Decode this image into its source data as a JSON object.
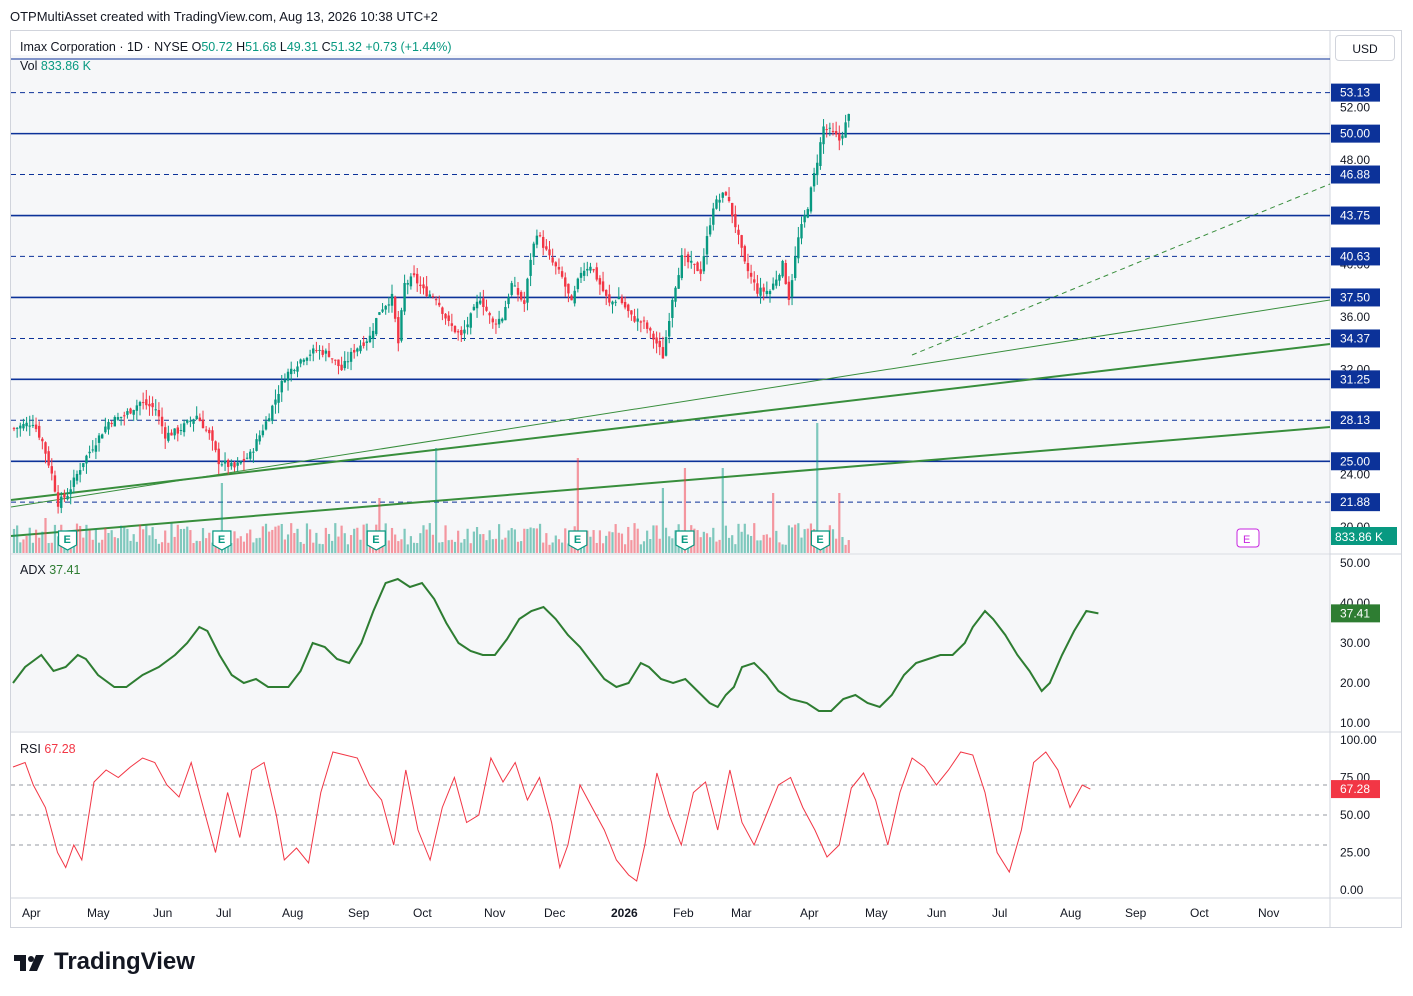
{
  "credit": "OTPMultiAsset created with TradingView.com, Aug 13, 2026 10:38 UTC+2",
  "currency": "USD",
  "brand": "TradingView",
  "legend": {
    "symbol": "Imax Corporation · 1D · NYSE",
    "open_label": "O",
    "open": "50.72",
    "high_label": "H",
    "high": "51.68",
    "low_label": "L",
    "low": "49.31",
    "close_label": "C",
    "close": "51.32",
    "change": "+0.73 (+1.44%)",
    "vol_label": "Vol",
    "vol": "833.86 K",
    "adx_label": "ADX",
    "adx": "37.41",
    "rsi_label": "RSI",
    "rsi": "67.28"
  },
  "colors": {
    "up": "#089981",
    "down": "#f23645",
    "navy": "#0c3299",
    "trend": "#388e3c",
    "rsi": "#f23645",
    "adx": "#2e7d32"
  },
  "chart_data": [
    {
      "type": "candlestick",
      "title": "Imax Corporation · 1D · NYSE",
      "ylim": [
        18,
        56
      ],
      "y_ticks": [
        20.0,
        24.0,
        32.0,
        36.0,
        40.0,
        48.0,
        52.0
      ],
      "x_labels": [
        "Apr",
        "May",
        "Jun",
        "Jul",
        "Aug",
        "Sep",
        "Oct",
        "Nov",
        "Dec",
        "2026",
        "Feb",
        "Mar",
        "Apr",
        "May",
        "Jun",
        "Jul",
        "Aug",
        "Sep",
        "Oct",
        "Nov"
      ],
      "close_path": [
        [
          0,
          27.5
        ],
        [
          6,
          28.0
        ],
        [
          9,
          26.5
        ],
        [
          12,
          24.0
        ],
        [
          14,
          21.8
        ],
        [
          17,
          22.5
        ],
        [
          22,
          25.0
        ],
        [
          26,
          26.5
        ],
        [
          30,
          28.0
        ],
        [
          35,
          28.5
        ],
        [
          40,
          29.5
        ],
        [
          45,
          29.0
        ],
        [
          48,
          27.0
        ],
        [
          52,
          27.3
        ],
        [
          58,
          28.5
        ],
        [
          62,
          27.0
        ],
        [
          65,
          25.0
        ],
        [
          70,
          24.5
        ],
        [
          75,
          25.5
        ],
        [
          80,
          28.0
        ],
        [
          86,
          31.5
        ],
        [
          92,
          33.0
        ],
        [
          96,
          33.5
        ],
        [
          100,
          33.2
        ],
        [
          104,
          32.0
        ],
        [
          108,
          33.5
        ],
        [
          113,
          34.5
        ],
        [
          116,
          36.5
        ],
        [
          118,
          37.0
        ],
        [
          120,
          37.5
        ],
        [
          122,
          34.0
        ],
        [
          124,
          38.5
        ],
        [
          127,
          39.0
        ],
        [
          130,
          38.0
        ],
        [
          134,
          37.5
        ],
        [
          138,
          35.5
        ],
        [
          142,
          34.5
        ],
        [
          145,
          36.0
        ],
        [
          148,
          37.5
        ],
        [
          152,
          35.5
        ],
        [
          155,
          36.0
        ],
        [
          158,
          38.5
        ],
        [
          162,
          37.0
        ],
        [
          164,
          40.5
        ],
        [
          166,
          42.5
        ],
        [
          170,
          40.5
        ],
        [
          174,
          39.0
        ],
        [
          177,
          37.0
        ],
        [
          180,
          39.5
        ],
        [
          183,
          40.0
        ],
        [
          186,
          38.5
        ],
        [
          189,
          37.0
        ],
        [
          192,
          37.5
        ],
        [
          196,
          36.0
        ],
        [
          200,
          35.5
        ],
        [
          204,
          34.0
        ],
        [
          206,
          33.0
        ],
        [
          209,
          37.5
        ],
        [
          212,
          40.5
        ],
        [
          215,
          40.0
        ],
        [
          218,
          39.5
        ],
        [
          222,
          44.5
        ],
        [
          226,
          45.5
        ],
        [
          229,
          43.0
        ],
        [
          232,
          40.0
        ],
        [
          236,
          38.0
        ],
        [
          240,
          38.0
        ],
        [
          244,
          40.0
        ],
        [
          246,
          37.5
        ],
        [
          249,
          42.0
        ],
        [
          252,
          44.5
        ],
        [
          255,
          48.0
        ],
        [
          257,
          50.5
        ],
        [
          260,
          50.0
        ],
        [
          262,
          49.5
        ],
        [
          265,
          51.32
        ]
      ],
      "horizontal_levels": [
        {
          "value": 53.13,
          "style": "dashed"
        },
        {
          "value": 50.0,
          "style": "solid"
        },
        {
          "value": 46.88,
          "style": "dashed"
        },
        {
          "value": 43.75,
          "style": "solid"
        },
        {
          "value": 40.63,
          "style": "dashed"
        },
        {
          "value": 37.5,
          "style": "solid"
        },
        {
          "value": 34.37,
          "style": "dashed"
        },
        {
          "value": 31.25,
          "style": "solid"
        },
        {
          "value": 28.13,
          "style": "dashed"
        },
        {
          "value": 25.0,
          "style": "solid"
        },
        {
          "value": 21.88,
          "style": "dashed"
        }
      ],
      "earnings_markers": [
        17,
        66,
        115,
        179,
        213,
        256
      ]
    },
    {
      "type": "bar",
      "title": "Vol",
      "last_value": "833.86 K",
      "spikes": [
        {
          "x": 10,
          "h": 0.35
        },
        {
          "x": 66,
          "h": 0.7
        },
        {
          "x": 116,
          "h": 0.55
        },
        {
          "x": 134,
          "h": 1.05
        },
        {
          "x": 179,
          "h": 0.95
        },
        {
          "x": 206,
          "h": 0.65
        },
        {
          "x": 213,
          "h": 0.85
        },
        {
          "x": 225,
          "h": 0.85
        },
        {
          "x": 241,
          "h": 0.6
        },
        {
          "x": 255,
          "h": 1.3
        },
        {
          "x": 262,
          "h": 0.6
        }
      ]
    },
    {
      "type": "line",
      "title": "ADX",
      "last_value": 37.41,
      "ylim": [
        8,
        52
      ],
      "y_ticks": [
        10.0,
        20.0,
        30.0,
        40.0,
        50.0
      ],
      "values": [
        [
          0,
          20
        ],
        [
          3,
          24
        ],
        [
          7,
          27
        ],
        [
          10,
          23
        ],
        [
          13,
          24
        ],
        [
          16,
          27
        ],
        [
          18,
          26
        ],
        [
          21,
          22
        ],
        [
          25,
          19
        ],
        [
          28,
          19
        ],
        [
          32,
          22
        ],
        [
          36,
          24
        ],
        [
          40,
          27
        ],
        [
          43,
          30
        ],
        [
          46,
          34
        ],
        [
          48,
          33
        ],
        [
          51,
          27
        ],
        [
          54,
          22
        ],
        [
          57,
          20
        ],
        [
          60,
          21
        ],
        [
          63,
          19
        ],
        [
          66,
          19
        ],
        [
          68,
          19
        ],
        [
          71,
          23
        ],
        [
          74,
          30
        ],
        [
          77,
          29
        ],
        [
          80,
          26
        ],
        [
          83,
          25
        ],
        [
          86,
          30
        ],
        [
          89,
          38
        ],
        [
          92,
          45
        ],
        [
          95,
          46
        ],
        [
          98,
          44
        ],
        [
          101,
          45
        ],
        [
          104,
          41
        ],
        [
          107,
          35
        ],
        [
          110,
          30
        ],
        [
          113,
          28
        ],
        [
          116,
          27
        ],
        [
          119,
          27
        ],
        [
          122,
          31
        ],
        [
          125,
          36
        ],
        [
          128,
          38
        ],
        [
          131,
          39
        ],
        [
          134,
          36
        ],
        [
          137,
          32
        ],
        [
          140,
          29
        ],
        [
          143,
          25
        ],
        [
          146,
          21
        ],
        [
          149,
          19
        ],
        [
          152,
          20
        ],
        [
          155,
          25
        ],
        [
          157,
          24
        ],
        [
          160,
          21
        ],
        [
          163,
          20
        ],
        [
          166,
          21
        ],
        [
          168,
          19
        ],
        [
          172,
          15
        ],
        [
          174,
          14
        ],
        [
          176,
          17
        ],
        [
          178,
          19
        ],
        [
          180,
          24
        ],
        [
          183,
          25
        ],
        [
          186,
          22
        ],
        [
          189,
          18
        ],
        [
          192,
          16
        ],
        [
          196,
          15
        ],
        [
          199,
          13
        ],
        [
          202,
          13
        ],
        [
          205,
          16
        ],
        [
          208,
          17
        ],
        [
          211,
          15
        ],
        [
          214,
          14
        ],
        [
          217,
          17
        ],
        [
          220,
          22
        ],
        [
          223,
          25
        ],
        [
          226,
          26
        ],
        [
          229,
          27
        ],
        [
          232,
          27
        ],
        [
          235,
          30
        ],
        [
          237,
          34
        ],
        [
          240,
          38
        ],
        [
          242,
          36
        ],
        [
          245,
          32
        ],
        [
          248,
          27
        ],
        [
          251,
          23
        ],
        [
          254,
          18
        ],
        [
          256,
          20
        ],
        [
          259,
          27
        ],
        [
          262,
          33
        ],
        [
          265,
          38
        ],
        [
          268,
          37.41
        ]
      ]
    },
    {
      "type": "line",
      "title": "RSI",
      "last_value": 67.28,
      "ylim": [
        0,
        100
      ],
      "y_ticks": [
        0.0,
        25.0,
        50.0,
        75.0,
        100.0
      ],
      "bands": [
        30,
        50,
        70
      ],
      "values": [
        [
          0,
          82
        ],
        [
          3,
          85
        ],
        [
          5,
          70
        ],
        [
          8,
          55
        ],
        [
          11,
          25
        ],
        [
          13,
          15
        ],
        [
          15,
          30
        ],
        [
          17,
          20
        ],
        [
          20,
          72
        ],
        [
          23,
          80
        ],
        [
          26,
          75
        ],
        [
          29,
          82
        ],
        [
          32,
          88
        ],
        [
          35,
          85
        ],
        [
          38,
          70
        ],
        [
          41,
          62
        ],
        [
          44,
          85
        ],
        [
          47,
          55
        ],
        [
          50,
          25
        ],
        [
          53,
          65
        ],
        [
          56,
          35
        ],
        [
          59,
          80
        ],
        [
          62,
          85
        ],
        [
          65,
          50
        ],
        [
          67,
          20
        ],
        [
          70,
          28
        ],
        [
          73,
          18
        ],
        [
          76,
          65
        ],
        [
          79,
          92
        ],
        [
          82,
          90
        ],
        [
          85,
          88
        ],
        [
          88,
          70
        ],
        [
          91,
          60
        ],
        [
          94,
          30
        ],
        [
          97,
          80
        ],
        [
          100,
          40
        ],
        [
          103,
          20
        ],
        [
          106,
          55
        ],
        [
          109,
          75
        ],
        [
          112,
          45
        ],
        [
          115,
          50
        ],
        [
          118,
          88
        ],
        [
          121,
          72
        ],
        [
          124,
          85
        ],
        [
          127,
          60
        ],
        [
          130,
          75
        ],
        [
          133,
          45
        ],
        [
          135,
          15
        ],
        [
          137,
          30
        ],
        [
          140,
          70
        ],
        [
          143,
          55
        ],
        [
          146,
          40
        ],
        [
          149,
          20
        ],
        [
          152,
          10
        ],
        [
          154,
          6
        ],
        [
          156,
          30
        ],
        [
          159,
          78
        ],
        [
          162,
          50
        ],
        [
          165,
          30
        ],
        [
          168,
          65
        ],
        [
          171,
          72
        ],
        [
          174,
          40
        ],
        [
          177,
          80
        ],
        [
          180,
          45
        ],
        [
          183,
          30
        ],
        [
          186,
          50
        ],
        [
          189,
          70
        ],
        [
          192,
          75
        ],
        [
          195,
          55
        ],
        [
          198,
          40
        ],
        [
          201,
          22
        ],
        [
          204,
          30
        ],
        [
          207,
          68
        ],
        [
          210,
          78
        ],
        [
          213,
          60
        ],
        [
          216,
          30
        ],
        [
          219,
          65
        ],
        [
          222,
          88
        ],
        [
          225,
          82
        ],
        [
          228,
          70
        ],
        [
          231,
          80
        ],
        [
          234,
          92
        ],
        [
          237,
          90
        ],
        [
          240,
          65
        ],
        [
          243,
          25
        ],
        [
          246,
          12
        ],
        [
          249,
          40
        ],
        [
          252,
          85
        ],
        [
          255,
          92
        ],
        [
          258,
          80
        ],
        [
          261,
          55
        ],
        [
          264,
          70
        ],
        [
          266,
          67.28
        ]
      ]
    }
  ]
}
